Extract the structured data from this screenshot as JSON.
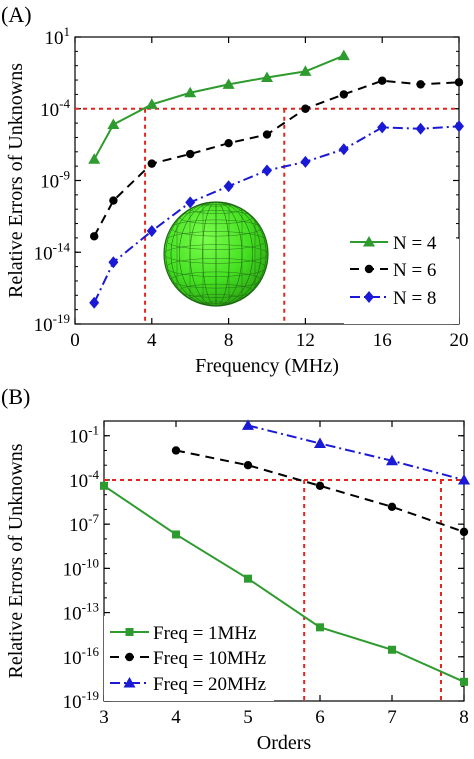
{
  "chart_data": [
    {
      "panel_label": "(A)",
      "type": "line",
      "xlabel": "Frequency (MHz)",
      "ylabel": "Relative Errors of Unknowns",
      "xlim": [
        0,
        20
      ],
      "ylim_exp": [
        -19,
        1
      ],
      "yscale": "log",
      "xticks": [
        0,
        4,
        8,
        12,
        16,
        20
      ],
      "yticks_exp": [
        -19,
        -14,
        -9,
        -4,
        1
      ],
      "legend_position": "lower-right",
      "grid": false,
      "reference_lines": {
        "y": 0.0001,
        "x": [
          3.65,
          10.9
        ]
      },
      "series": [
        {
          "name": "N = 4",
          "color": "#2e9b2e",
          "marker": "triangle",
          "dash": "solid",
          "x": [
            1,
            2,
            4,
            6,
            8,
            10,
            12,
            14
          ],
          "y": [
            3e-08,
            8e-06,
            0.0002,
            0.0013,
            0.005,
            0.015,
            0.04,
            0.5
          ]
        },
        {
          "name": "N = 6",
          "color": "#000000",
          "marker": "circle",
          "dash": "dashed",
          "x": [
            1,
            2,
            4,
            6,
            8,
            10,
            12,
            14,
            16,
            18,
            20
          ],
          "y": [
            1.3e-13,
            4e-11,
            1.5e-08,
            7e-08,
            4e-07,
            1.6e-06,
            0.0001,
            0.001,
            0.009,
            0.005,
            0.007
          ]
        },
        {
          "name": "N = 8",
          "color": "#1a1ad6",
          "marker": "diamond",
          "dash": "dashdot",
          "x": [
            1,
            2,
            4,
            6,
            8,
            10,
            12,
            14,
            16,
            18,
            20
          ],
          "y": [
            3e-18,
            2e-15,
            3e-13,
            3e-11,
            4e-10,
            5e-09,
            2e-08,
            1.5e-07,
            5e-06,
            4e-06,
            6e-06
          ]
        }
      ]
    },
    {
      "panel_label": "(B)",
      "type": "line",
      "xlabel": "Orders",
      "ylabel": "Relative Errors of Unknowns",
      "xlim": [
        3,
        8
      ],
      "ylim_exp": [
        -19,
        0
      ],
      "yscale": "log",
      "xticks": [
        3,
        4,
        5,
        6,
        7,
        8
      ],
      "yticks_exp": [
        -19,
        -16,
        -13,
        -10,
        -7,
        -4,
        -1
      ],
      "legend_position": "lower-left",
      "grid": false,
      "reference_lines": {
        "y": 0.0001,
        "x": [
          5.78,
          7.68
        ]
      },
      "series": [
        {
          "name": "Freq = 1MHz",
          "color": "#2e9b2e",
          "marker": "square",
          "dash": "solid",
          "x": [
            3,
            4,
            5,
            6,
            7,
            8
          ],
          "y": [
            4e-05,
            2e-08,
            2e-11,
            1e-14,
            3e-16,
            2e-18
          ]
        },
        {
          "name": "Freq = 10MHz",
          "color": "#000000",
          "marker": "circle",
          "dash": "dashed",
          "x": [
            4,
            5,
            6,
            7,
            8
          ],
          "y": [
            0.01,
            0.001,
            4e-05,
            1.5e-06,
            3e-08
          ]
        },
        {
          "name": "Freq = 20MHz",
          "color": "#1a1ad6",
          "marker": "triangle",
          "dash": "dashdot",
          "x": [
            5,
            6,
            7,
            8
          ],
          "y": [
            0.5,
            0.03,
            0.002,
            0.0001
          ]
        }
      ]
    }
  ]
}
